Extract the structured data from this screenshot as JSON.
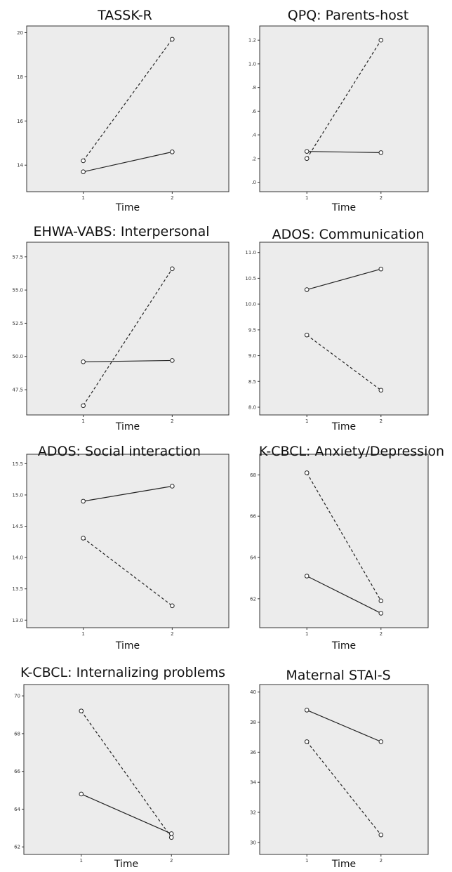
{
  "chart_data": [
    {
      "type": "line",
      "title": "TASSK-R",
      "xlabel": "Time",
      "x": [
        1,
        2
      ],
      "xticks": [
        "1",
        "2"
      ],
      "yticks": [
        "14",
        "16",
        "18",
        "20"
      ],
      "ylim": [
        12.8,
        20.3
      ],
      "series": [
        {
          "style": "solid",
          "values": [
            13.7,
            14.6
          ]
        },
        {
          "style": "dashed",
          "values": [
            14.2,
            19.7
          ]
        }
      ]
    },
    {
      "type": "line",
      "title": "QPQ: Parents-host",
      "xlabel": "Time",
      "x": [
        1,
        2
      ],
      "xticks": [
        "1",
        "2"
      ],
      "yticks": [
        ".0",
        ".2",
        ".4",
        ".6",
        ".8",
        "1.0",
        "1.2"
      ],
      "ylim": [
        -0.08,
        1.32
      ],
      "series": [
        {
          "style": "solid",
          "values": [
            0.26,
            0.25
          ]
        },
        {
          "style": "dashed",
          "values": [
            0.2,
            1.2
          ]
        }
      ]
    },
    {
      "type": "line",
      "title": "EHWA-VABS: Interpersonal",
      "xlabel": "Time",
      "x": [
        1,
        2
      ],
      "xticks": [
        "1",
        "2"
      ],
      "yticks": [
        "47.5",
        "50.0",
        "52.5",
        "55.0",
        "57.5"
      ],
      "ylim": [
        45.6,
        58.6
      ],
      "series": [
        {
          "style": "solid",
          "values": [
            49.6,
            49.7
          ]
        },
        {
          "style": "dashed",
          "values": [
            46.3,
            56.6
          ]
        }
      ]
    },
    {
      "type": "line",
      "title": "ADOS: Communication",
      "xlabel": "Time",
      "x": [
        1,
        2
      ],
      "xticks": [
        "1",
        "2"
      ],
      "yticks": [
        "8.0",
        "8.5",
        "9.0",
        "9.5",
        "10.0",
        "10.5",
        "11.0"
      ],
      "ylim": [
        7.85,
        11.2
      ],
      "series": [
        {
          "style": "solid",
          "values": [
            10.28,
            10.68
          ]
        },
        {
          "style": "dashed",
          "values": [
            9.4,
            8.33
          ]
        }
      ]
    },
    {
      "type": "line",
      "title": "ADOS: Social interaction",
      "xlabel": "Time",
      "x": [
        1,
        2
      ],
      "xticks": [
        "1",
        "2"
      ],
      "yticks": [
        "13.0",
        "13.5",
        "14.0",
        "14.5",
        "15.0",
        "15.5"
      ],
      "ylim": [
        12.88,
        15.65
      ],
      "series": [
        {
          "style": "solid",
          "values": [
            14.9,
            15.14
          ]
        },
        {
          "style": "dashed",
          "values": [
            14.31,
            13.23
          ]
        }
      ]
    },
    {
      "type": "line",
      "title": "K-CBCL: Anxiety/Depression",
      "xlabel": "Time",
      "x": [
        1,
        2
      ],
      "xticks": [
        "1",
        "2"
      ],
      "yticks": [
        "62",
        "64",
        "66",
        "68"
      ],
      "ylim": [
        60.6,
        69.0
      ],
      "series": [
        {
          "style": "solid",
          "values": [
            63.1,
            61.3
          ]
        },
        {
          "style": "dashed",
          "values": [
            68.1,
            61.9
          ]
        }
      ]
    },
    {
      "type": "line",
      "title": "K-CBCL: Internalizing problems",
      "xlabel": "Time",
      "x": [
        1,
        2
      ],
      "xticks": [
        "1",
        "2"
      ],
      "yticks": [
        "62",
        "64",
        "66",
        "68",
        "70"
      ],
      "ylim": [
        61.6,
        70.6
      ],
      "series": [
        {
          "style": "solid",
          "values": [
            64.8,
            62.7
          ]
        },
        {
          "style": "dashed",
          "values": [
            69.2,
            62.5
          ]
        }
      ]
    },
    {
      "type": "line",
      "title": "Maternal STAI-S",
      "xlabel": "Time",
      "x": [
        1,
        2
      ],
      "xticks": [
        "1",
        "2"
      ],
      "yticks": [
        "30",
        "32",
        "34",
        "36",
        "38",
        "40"
      ],
      "ylim": [
        29.2,
        40.5
      ],
      "series": [
        {
          "style": "solid",
          "values": [
            38.8,
            36.7
          ]
        },
        {
          "style": "dashed",
          "values": [
            36.7,
            30.5
          ]
        }
      ]
    }
  ]
}
